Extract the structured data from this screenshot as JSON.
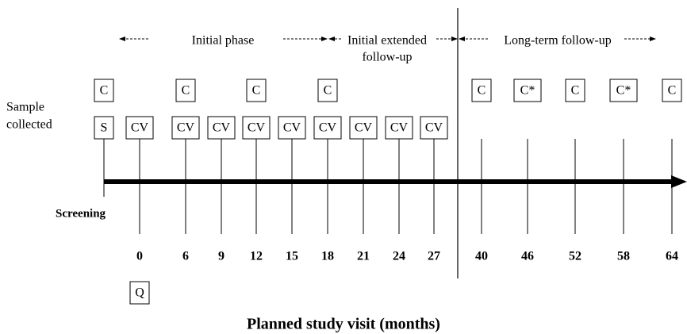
{
  "title": "Planned study visit (months)",
  "row_label": [
    "Sample",
    "collected"
  ],
  "phases": [
    {
      "lines": [
        "Initial phase"
      ]
    },
    {
      "lines": [
        "Initial extended",
        "follow-up"
      ]
    },
    {
      "lines": [
        "Long-term follow-up"
      ]
    }
  ],
  "screening": {
    "label": "Screening",
    "top": "C",
    "bottom": "S"
  },
  "visits": [
    {
      "month": 0,
      "bottom": "CV",
      "extra": "Q"
    },
    {
      "month": 6,
      "top": "C",
      "bottom": "CV"
    },
    {
      "month": 9,
      "bottom": "CV"
    },
    {
      "month": 12,
      "top": "C",
      "bottom": "CV"
    },
    {
      "month": 15,
      "bottom": "CV"
    },
    {
      "month": 18,
      "top": "C",
      "bottom": "CV"
    },
    {
      "month": 21,
      "bottom": "CV"
    },
    {
      "month": 24,
      "bottom": "CV"
    },
    {
      "month": 27,
      "bottom": "CV"
    },
    {
      "month": 40,
      "top": "C"
    },
    {
      "month": 46,
      "top": "C*"
    },
    {
      "month": 52,
      "top": "C"
    },
    {
      "month": 58,
      "top": "C*"
    },
    {
      "month": 64,
      "top": "C"
    }
  ]
}
